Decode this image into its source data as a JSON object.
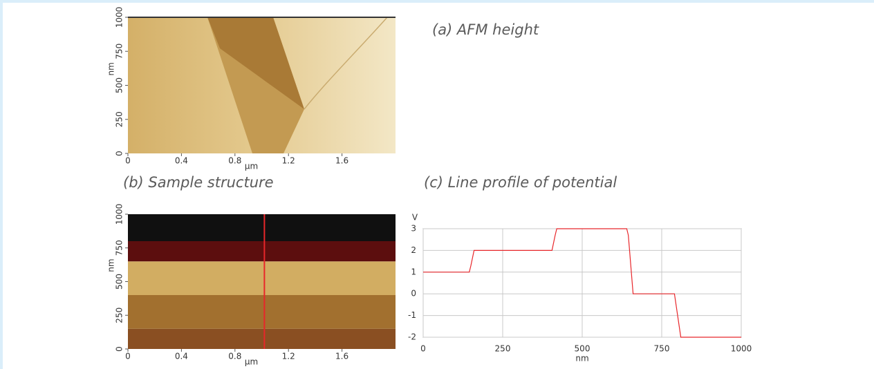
{
  "chart_data": [
    {
      "type": "image",
      "title": "(a) AFM height",
      "xlabel": "µm",
      "ylabel": "nm",
      "xlim": [
        0,
        2
      ],
      "xticks": [
        0,
        0.4,
        0.8,
        1.2,
        1.6
      ],
      "ylim": [
        0,
        1000
      ],
      "yticks": [
        0,
        250,
        500,
        750,
        1000
      ]
    },
    {
      "type": "bands",
      "title": "(b) Sample structure",
      "xlabel": "µm",
      "ylabel": "nm",
      "xlim": [
        0,
        2
      ],
      "xticks": [
        0,
        0.4,
        0.8,
        1.2,
        1.6
      ],
      "ylim": [
        0,
        1000
      ],
      "yticks": [
        0,
        250,
        500,
        750,
        1000
      ],
      "band_edges": [
        0,
        150,
        400,
        650,
        800,
        1000
      ],
      "band_colors": [
        "#8a4f22",
        "#a2702f",
        "#d2ad62",
        "#5c0e0e",
        "#101010"
      ],
      "marker_x": 1.02,
      "marker_color": "#e8262a"
    },
    {
      "type": "line",
      "title": "(c) Line profile of potential",
      "xlabel": "nm",
      "ylabel": "V",
      "x": [
        0,
        145,
        150,
        160,
        405,
        415,
        420,
        640,
        645,
        660,
        790,
        795,
        810,
        1000
      ],
      "values": [
        1,
        1,
        1.3,
        2,
        2,
        2.7,
        3,
        3,
        2.7,
        0,
        0,
        -0.5,
        -2,
        -2
      ],
      "color": "#e8262a",
      "xlim": [
        0,
        1000
      ],
      "xticks": [
        0,
        250,
        500,
        750,
        1000
      ],
      "ylim": [
        -2,
        3
      ],
      "yticks": [
        -2,
        -1,
        0,
        1,
        2,
        3
      ],
      "grid": true
    }
  ]
}
